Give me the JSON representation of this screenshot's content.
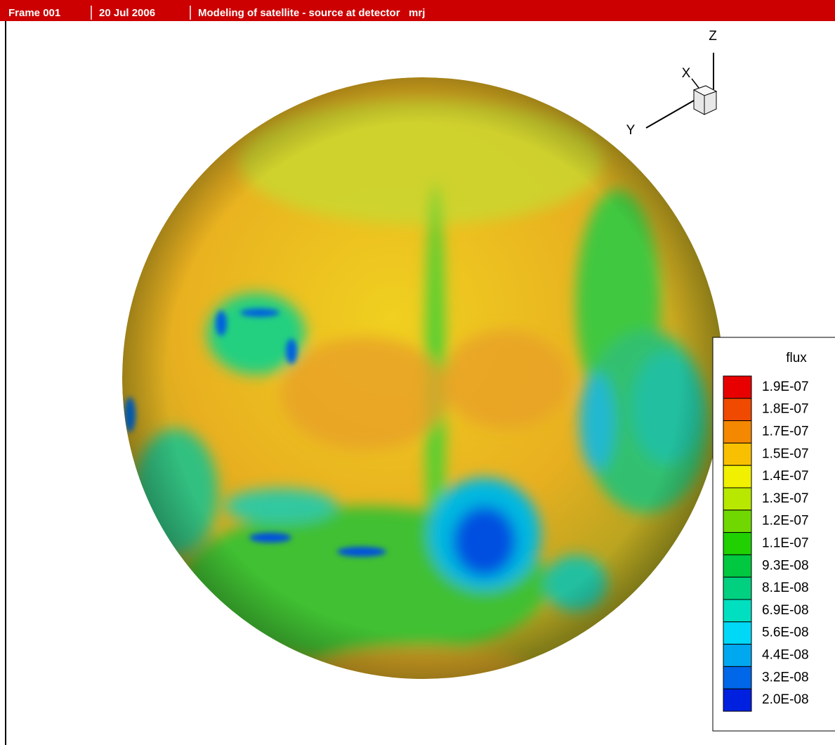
{
  "header": {
    "frame": "Frame 001",
    "date": "20 Jul 2006",
    "title": "Modeling of satellite - source at detector   mrj"
  },
  "axes": {
    "z": "Z",
    "x": "X",
    "y": "Y"
  },
  "legend": {
    "title": "flux",
    "levels": [
      "1.9E-07",
      "1.8E-07",
      "1.7E-07",
      "1.5E-07",
      "1.4E-07",
      "1.3E-07",
      "1.2E-07",
      "1.1E-07",
      "9.3E-08",
      "8.1E-08",
      "6.9E-08",
      "5.6E-08",
      "4.4E-08",
      "3.2E-08",
      "2.0E-08"
    ],
    "colors": [
      "#e80000",
      "#f04a00",
      "#f48800",
      "#f8c000",
      "#f0f000",
      "#b8e800",
      "#70d800",
      "#20d000",
      "#00c840",
      "#00d080",
      "#00e0c0",
      "#00d8f8",
      "#00a8f0",
      "#0068e8",
      "#0020e0"
    ]
  }
}
